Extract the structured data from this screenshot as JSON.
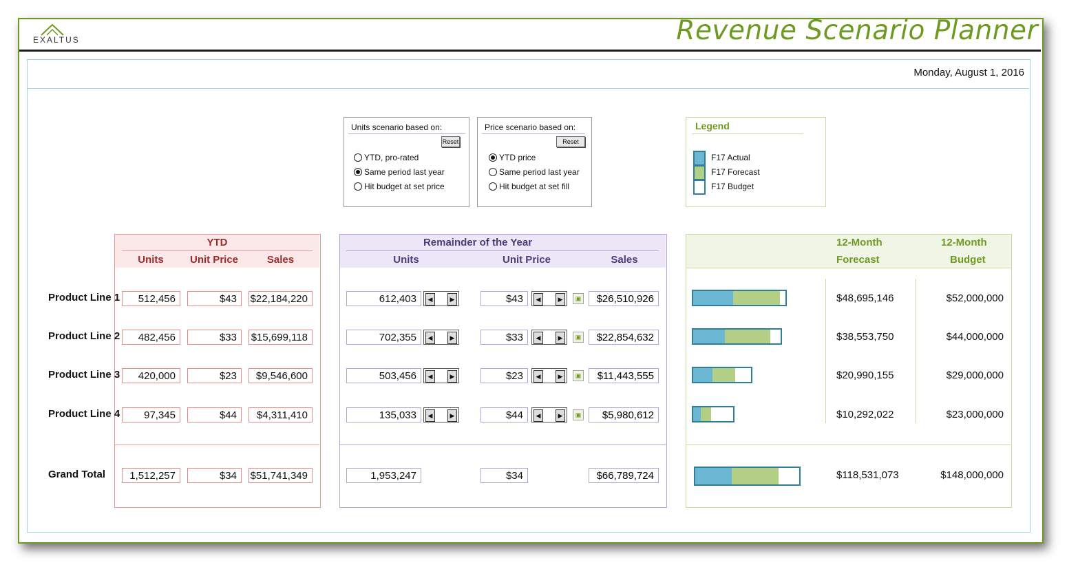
{
  "app": {
    "logo_text": "EXALTUS",
    "title": "Revenue Scenario Planner",
    "date": "Monday, August 1, 2016"
  },
  "units_scenario": {
    "title": "Units scenario based on:",
    "reset_label": "Reset",
    "options": [
      {
        "label": "YTD, pro-rated",
        "selected": false
      },
      {
        "label": "Same period last year",
        "selected": true
      },
      {
        "label": "Hit budget at set price",
        "selected": false
      }
    ]
  },
  "price_scenario": {
    "title": "Price scenario based on:",
    "reset_label": "Reset",
    "options": [
      {
        "label": "YTD price",
        "selected": true
      },
      {
        "label": "Same period last year",
        "selected": false
      },
      {
        "label": "Hit budget at set fill",
        "selected": false
      }
    ]
  },
  "legend": {
    "title": "Legend",
    "items": [
      {
        "label": "F17 Actual",
        "color": "#6cb7d4"
      },
      {
        "label": "F17 Forecast",
        "color": "#b3cf86"
      },
      {
        "label": "F17 Budget",
        "color": "#ffffff"
      }
    ]
  },
  "headers": {
    "ytd": {
      "title": "YTD",
      "units": "Units",
      "unit_price": "Unit Price",
      "sales": "Sales"
    },
    "remainder": {
      "title": "Remainder of the Year",
      "units": "Units",
      "unit_price": "Unit Price",
      "sales": "Sales"
    },
    "forecast": {
      "fc_line1": "12-Month",
      "fc_line2": "Forecast",
      "bud_line1": "12-Month",
      "bud_line2": "Budget"
    }
  },
  "rows": [
    {
      "label": "Product Line 1",
      "ytd_units": "512,456",
      "ytd_price": "$43",
      "ytd_sales": "$22,184,220",
      "rem_units": "612,403",
      "rem_price": "$43",
      "rem_sales": "$26,510,926",
      "forecast": "$48,695,146",
      "budget": "$52,000,000",
      "actual_pct": 0.43,
      "forecast_pct": 0.94
    },
    {
      "label": "Product Line 2",
      "ytd_units": "482,456",
      "ytd_price": "$33",
      "ytd_sales": "$15,699,118",
      "rem_units": "702,355",
      "rem_price": "$33",
      "rem_sales": "$22,854,632",
      "forecast": "$38,553,750",
      "budget": "$44,000,000",
      "actual_pct": 0.36,
      "forecast_pct": 0.88
    },
    {
      "label": "Product Line 3",
      "ytd_units": "420,000",
      "ytd_price": "$23",
      "ytd_sales": "$9,546,600",
      "rem_units": "503,456",
      "rem_price": "$23",
      "rem_sales": "$11,443,555",
      "forecast": "$20,990,155",
      "budget": "$29,000,000",
      "actual_pct": 0.33,
      "forecast_pct": 0.72
    },
    {
      "label": "Product Line 4",
      "ytd_units": "97,345",
      "ytd_price": "$44",
      "ytd_sales": "$4,311,410",
      "rem_units": "135,033",
      "rem_price": "$44",
      "rem_sales": "$5,980,612",
      "forecast": "$10,292,022",
      "budget": "$23,000,000",
      "actual_pct": 0.19,
      "forecast_pct": 0.45
    }
  ],
  "total": {
    "label": "Grand Total",
    "ytd_units": "1,512,257",
    "ytd_price": "$34",
    "ytd_sales": "$51,741,349",
    "rem_units": "1,953,247",
    "rem_price": "$34",
    "rem_sales": "$66,789,724",
    "forecast": "$118,531,073",
    "budget": "$148,000,000",
    "actual_pct": 0.35,
    "forecast_pct": 0.8
  }
}
